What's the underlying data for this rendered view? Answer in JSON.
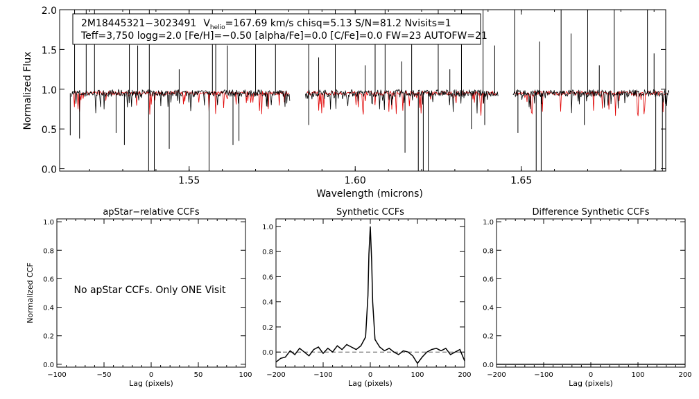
{
  "colors": {
    "observed": "#000000",
    "model": "#e00000",
    "zero_line": "#555555"
  },
  "header": {
    "star_id": "2M18445321−3023491",
    "vhelio_label": "V",
    "vhelio_subscript": "helio",
    "vhelio_rest": "=167.69 km/s  chisq=5.13  S/N=81.2  Nvisits=1",
    "line2": "Teff=3,750 logg=2.0 [Fe/H]=−0.50 [alpha/Fe]=0.0 [C/Fe]=0.0 FW=23 AUTOFW=21"
  },
  "chart_data": [
    {
      "id": "spectrum",
      "type": "line",
      "xlabel": "Wavelength (microns)",
      "ylabel": "Normalized Flux",
      "xlim": [
        1.511,
        1.6935
      ],
      "ylim": [
        -0.03,
        2.0
      ],
      "xticks": [
        1.55,
        1.6,
        1.65
      ],
      "xtick_labels": [
        "1.55",
        "1.60",
        "1.65"
      ],
      "yticks": [
        0.0,
        0.5,
        1.0,
        1.5,
        2.0
      ],
      "ytick_labels": [
        "0.0",
        "0.5",
        "1.0",
        "1.5",
        "2.0"
      ],
      "chip_ranges": [
        [
          1.5145,
          1.5803
        ],
        [
          1.585,
          1.643
        ],
        [
          1.6475,
          1.6945
        ]
      ],
      "model_ranges": [
        [
          1.515,
          1.58
        ],
        [
          1.5855,
          1.6425
        ],
        [
          1.648,
          1.694
        ]
      ],
      "continuum": 0.95,
      "deep_lines": [
        {
          "x": 1.5142,
          "y": 0.42
        },
        {
          "x": 1.517,
          "y": 0.38
        },
        {
          "x": 1.528,
          "y": 0.45
        },
        {
          "x": 1.5305,
          "y": 0.3
        },
        {
          "x": 1.5378,
          "y": -0.03
        },
        {
          "x": 1.5395,
          "y": -0.03
        },
        {
          "x": 1.544,
          "y": 0.25
        },
        {
          "x": 1.556,
          "y": -0.03
        },
        {
          "x": 1.5632,
          "y": 0.3
        },
        {
          "x": 1.565,
          "y": 0.35
        },
        {
          "x": 1.586,
          "y": 0.55
        },
        {
          "x": 1.615,
          "y": 0.2
        },
        {
          "x": 1.619,
          "y": -0.03
        },
        {
          "x": 1.6205,
          "y": -0.03
        },
        {
          "x": 1.622,
          "y": -0.03
        },
        {
          "x": 1.635,
          "y": 0.5
        },
        {
          "x": 1.639,
          "y": 0.55
        },
        {
          "x": 1.649,
          "y": 0.45
        },
        {
          "x": 1.6545,
          "y": -0.03
        },
        {
          "x": 1.656,
          "y": -0.03
        },
        {
          "x": 1.669,
          "y": 0.55
        },
        {
          "x": 1.6905,
          "y": -0.03
        },
        {
          "x": 1.6925,
          "y": -0.03
        }
      ],
      "spikes": [
        {
          "x": 1.5155,
          "y": 2.0
        },
        {
          "x": 1.519,
          "y": 2.0
        },
        {
          "x": 1.5215,
          "y": 2.0
        },
        {
          "x": 1.532,
          "y": 2.0
        },
        {
          "x": 1.5345,
          "y": 1.55
        },
        {
          "x": 1.538,
          "y": 2.0
        },
        {
          "x": 1.547,
          "y": 1.25
        },
        {
          "x": 1.557,
          "y": 2.0
        },
        {
          "x": 1.558,
          "y": 1.8
        },
        {
          "x": 1.5615,
          "y": 1.55
        },
        {
          "x": 1.57,
          "y": 2.0
        },
        {
          "x": 1.576,
          "y": 1.6
        },
        {
          "x": 1.586,
          "y": 2.0
        },
        {
          "x": 1.589,
          "y": 1.4
        },
        {
          "x": 1.594,
          "y": 2.0
        },
        {
          "x": 1.603,
          "y": 1.3
        },
        {
          "x": 1.606,
          "y": 1.7
        },
        {
          "x": 1.609,
          "y": 2.0
        },
        {
          "x": 1.614,
          "y": 1.35
        },
        {
          "x": 1.617,
          "y": 1.6
        },
        {
          "x": 1.625,
          "y": 2.0
        },
        {
          "x": 1.6285,
          "y": 1.25
        },
        {
          "x": 1.632,
          "y": 2.0
        },
        {
          "x": 1.6385,
          "y": 2.0
        },
        {
          "x": 1.642,
          "y": 1.55
        },
        {
          "x": 1.648,
          "y": 2.0
        },
        {
          "x": 1.6555,
          "y": 1.6
        },
        {
          "x": 1.662,
          "y": 2.0
        },
        {
          "x": 1.665,
          "y": 1.7
        },
        {
          "x": 1.67,
          "y": 2.0
        },
        {
          "x": 1.6735,
          "y": 1.3
        },
        {
          "x": 1.678,
          "y": 2.0
        },
        {
          "x": 1.688,
          "y": 2.0
        },
        {
          "x": 1.69,
          "y": 1.45
        }
      ]
    },
    {
      "id": "apstar_ccf",
      "type": "line",
      "title": "apStar−relative CCFs",
      "xlabel": "Lag (pixels)",
      "ylabel": "Normalized CCF",
      "xlim": [
        -100,
        100
      ],
      "ylim": [
        -0.02,
        1.02
      ],
      "xticks": [
        -100,
        -50,
        0,
        50,
        100
      ],
      "xtick_labels": [
        "−100",
        "−50",
        "0",
        "50",
        "100"
      ],
      "yticks": [
        0.0,
        0.2,
        0.4,
        0.6,
        0.8,
        1.0
      ],
      "ytick_labels": [
        "0.0",
        "0.2",
        "0.4",
        "0.6",
        "0.8",
        "1.0"
      ],
      "annotation": "No apStar CCFs.  Only ONE Visit"
    },
    {
      "id": "synthetic_ccf",
      "type": "line",
      "title": "Synthetic CCFs",
      "xlabel": "Lag (pixels)",
      "xlim": [
        -200,
        200
      ],
      "ylim": [
        -0.12,
        1.06
      ],
      "xticks": [
        -200,
        -100,
        0,
        100,
        200
      ],
      "xtick_labels": [
        "−200",
        "−100",
        "0",
        "100",
        "200"
      ],
      "yticks": [
        0.0,
        0.2,
        0.4,
        0.6,
        0.8,
        1.0
      ],
      "ytick_labels": [
        "0.0",
        "0.2",
        "0.4",
        "0.6",
        "0.8",
        "1.0"
      ],
      "zero_line": 0.0,
      "x": [
        -200,
        -190,
        -180,
        -170,
        -160,
        -150,
        -140,
        -130,
        -120,
        -110,
        -100,
        -90,
        -80,
        -70,
        -60,
        -50,
        -40,
        -30,
        -20,
        -10,
        -5,
        -3,
        0,
        3,
        5,
        10,
        20,
        30,
        40,
        50,
        60,
        70,
        80,
        90,
        100,
        110,
        120,
        130,
        140,
        150,
        160,
        170,
        180,
        190,
        200
      ],
      "y": [
        -0.08,
        -0.05,
        -0.04,
        0.01,
        -0.02,
        0.03,
        0.0,
        -0.03,
        0.02,
        0.04,
        -0.01,
        0.03,
        0.0,
        0.05,
        0.02,
        0.06,
        0.04,
        0.02,
        0.05,
        0.12,
        0.45,
        0.78,
        1.0,
        0.72,
        0.4,
        0.1,
        0.04,
        0.01,
        0.03,
        0.0,
        -0.02,
        0.01,
        0.0,
        -0.03,
        -0.09,
        -0.04,
        0.0,
        0.02,
        0.03,
        0.01,
        0.03,
        -0.02,
        0.0,
        0.02,
        -0.07
      ]
    },
    {
      "id": "difference_ccf",
      "type": "line",
      "title": "Difference Synthetic CCFs",
      "xlabel": "Lag (pixels)",
      "xlim": [
        -200,
        200
      ],
      "ylim": [
        -0.02,
        1.02
      ],
      "xticks": [
        -200,
        -100,
        0,
        100,
        200
      ],
      "xtick_labels": [
        "−200",
        "−100",
        "0",
        "100",
        "200"
      ],
      "yticks": [
        0.0,
        0.2,
        0.4,
        0.6,
        0.8,
        1.0
      ],
      "ytick_labels": [
        "0.0",
        "0.2",
        "0.4",
        "0.6",
        "0.8",
        "1.0"
      ],
      "x": [
        -200,
        200
      ],
      "y": [
        0.0,
        0.0
      ]
    }
  ]
}
